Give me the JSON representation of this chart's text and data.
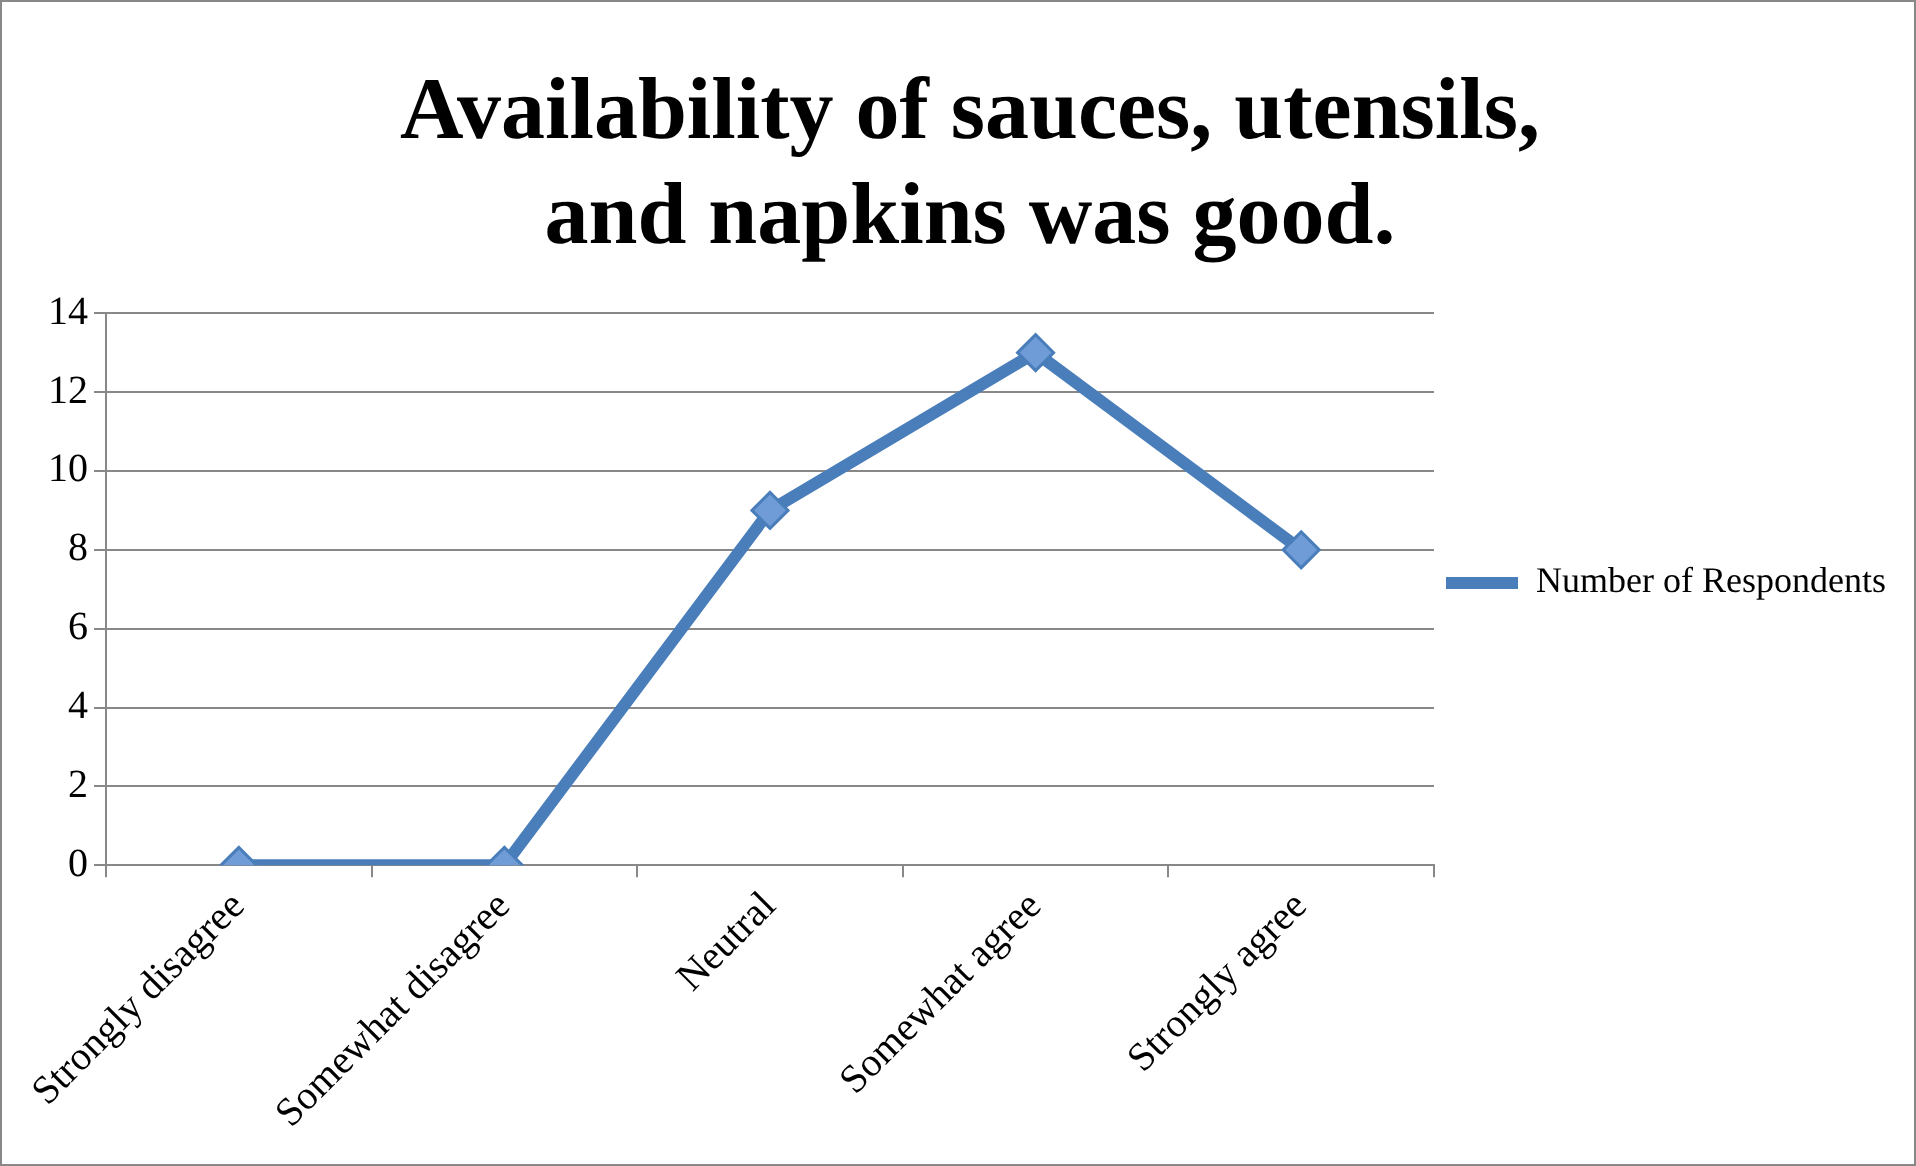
{
  "chart_data": {
    "type": "line",
    "title": "Availability of sauces, utensils, and napkins was good.",
    "categories": [
      "Strongly disagree",
      "Somewhat disagree",
      "Neutral",
      "Somewhat agree",
      "Strongly agree"
    ],
    "series": [
      {
        "name": "Number of Respondents",
        "color": "#4a7ebb",
        "values": [
          0,
          0,
          9,
          13,
          8
        ]
      }
    ],
    "ylim": [
      0,
      14
    ],
    "yticks": [
      0,
      2,
      4,
      6,
      8,
      10,
      12,
      14
    ],
    "grid": "y",
    "legend": "right",
    "marker": "diamond",
    "line_style": "solid"
  }
}
